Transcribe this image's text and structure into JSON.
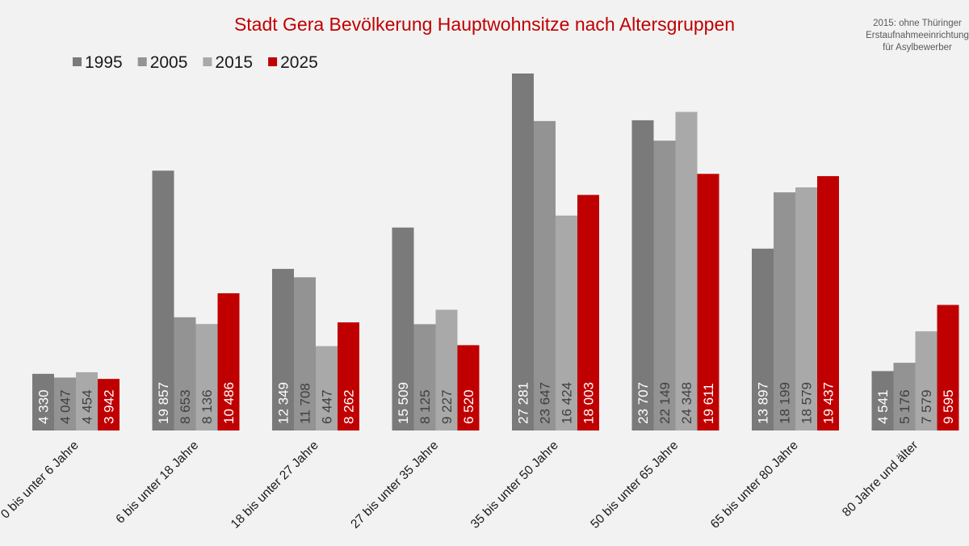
{
  "chart_data": {
    "type": "bar",
    "title": "Stadt Gera Bevölkerung Hauptwohnsitze nach Altersgruppen",
    "note": [
      "2015: ohne Thüringer",
      "Erstaufnahmeeinrichtung",
      "für Asylbewerber"
    ],
    "xlabel": "",
    "ylabel": "",
    "ylim": [
      0,
      27281
    ],
    "grid": false,
    "legend_position": "top-left",
    "categories": [
      "0 bis unter 6 Jahre",
      "6 bis unter 18 Jahre",
      "18 bis unter 27 Jahre",
      "27 bis unter 35 Jahre",
      "35 bis unter 50 Jahre",
      "50 bis unter 65 Jahre",
      "65 bis unter 80 Jahre",
      "80 Jahre und älter"
    ],
    "series": [
      {
        "name": "1995",
        "color": "#7a7a7a",
        "label_color": "#ffffff",
        "values": [
          4330,
          19857,
          12349,
          15509,
          27281,
          23707,
          13897,
          4541
        ]
      },
      {
        "name": "2005",
        "color": "#939393",
        "label_color": "#404040",
        "values": [
          4047,
          8653,
          11708,
          8125,
          23647,
          22149,
          18199,
          5176
        ]
      },
      {
        "name": "2015",
        "color": "#a9a9a9",
        "label_color": "#404040",
        "values": [
          4454,
          8136,
          6447,
          9227,
          16424,
          24348,
          18579,
          7579
        ]
      },
      {
        "name": "2025",
        "color": "#c00000",
        "label_color": "#ffffff",
        "values": [
          3942,
          10486,
          8262,
          6520,
          18003,
          19611,
          19437,
          9595
        ]
      }
    ]
  }
}
